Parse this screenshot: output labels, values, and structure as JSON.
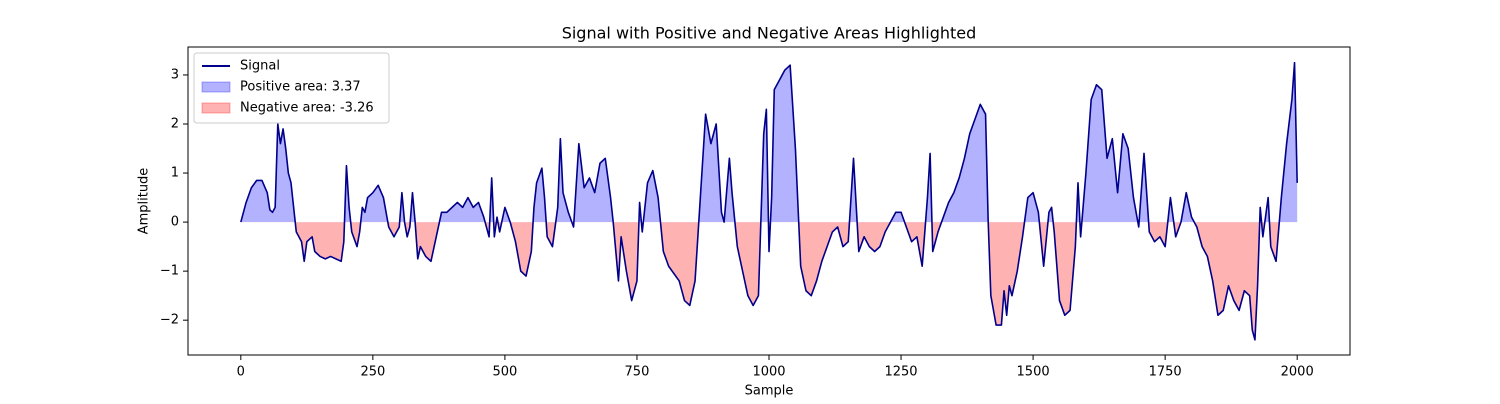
{
  "chart_data": {
    "type": "line",
    "title": "Signal with Positive and Negative Areas Highlighted",
    "x_label": "Sample",
    "y_label": "Amplitude",
    "x": [
      0,
      10,
      20,
      30,
      40,
      50,
      55,
      60,
      65,
      70,
      75,
      80,
      85,
      90,
      95,
      100,
      105,
      115,
      120,
      125,
      135,
      140,
      150,
      160,
      170,
      180,
      190,
      195,
      200,
      205,
      210,
      220,
      225,
      230,
      235,
      240,
      250,
      260,
      270,
      280,
      290,
      300,
      305,
      310,
      315,
      320,
      325,
      330,
      335,
      340,
      350,
      360,
      370,
      380,
      390,
      400,
      410,
      420,
      430,
      440,
      450,
      460,
      470,
      475,
      480,
      485,
      490,
      500,
      510,
      520,
      530,
      540,
      550,
      555,
      560,
      570,
      575,
      580,
      590,
      600,
      605,
      610,
      620,
      630,
      640,
      650,
      660,
      670,
      680,
      690,
      700,
      705,
      715,
      720,
      730,
      740,
      750,
      755,
      760,
      770,
      780,
      790,
      800,
      810,
      830,
      840,
      850,
      860,
      870,
      880,
      890,
      900,
      910,
      915,
      925,
      930,
      940,
      950,
      960,
      970,
      980,
      990,
      995,
      1000,
      1005,
      1010,
      1020,
      1030,
      1040,
      1050,
      1060,
      1070,
      1080,
      1090,
      1100,
      1110,
      1120,
      1130,
      1140,
      1150,
      1160,
      1170,
      1180,
      1190,
      1200,
      1210,
      1220,
      1230,
      1240,
      1250,
      1260,
      1270,
      1280,
      1290,
      1300,
      1305,
      1310,
      1320,
      1330,
      1340,
      1350,
      1360,
      1370,
      1380,
      1390,
      1400,
      1410,
      1415,
      1420,
      1430,
      1440,
      1445,
      1450,
      1455,
      1460,
      1470,
      1480,
      1490,
      1500,
      1510,
      1520,
      1530,
      1535,
      1540,
      1550,
      1560,
      1570,
      1580,
      1585,
      1590,
      1600,
      1610,
      1620,
      1630,
      1640,
      1650,
      1660,
      1670,
      1680,
      1690,
      1700,
      1710,
      1720,
      1730,
      1740,
      1750,
      1760,
      1770,
      1780,
      1790,
      1800,
      1810,
      1820,
      1830,
      1840,
      1850,
      1860,
      1870,
      1880,
      1890,
      1900,
      1910,
      1915,
      1920,
      1925,
      1930,
      1935,
      1945,
      1950,
      1960,
      1970,
      1980,
      1990,
      1995,
      2000
    ],
    "series": [
      {
        "name": "Signal",
        "color": "#00008b",
        "values": [
          0,
          0.4,
          0.7,
          0.85,
          0.85,
          0.6,
          0.25,
          0.2,
          0.3,
          2.0,
          1.6,
          1.9,
          1.5,
          1.0,
          0.8,
          0.3,
          -0.2,
          -0.4,
          -0.8,
          -0.4,
          -0.3,
          -0.6,
          -0.7,
          -0.75,
          -0.7,
          -0.75,
          -0.8,
          -0.4,
          1.15,
          0.3,
          -0.2,
          -0.5,
          -0.2,
          0.3,
          0.2,
          0.5,
          0.6,
          0.75,
          0.5,
          -0.1,
          -0.3,
          -0.1,
          0.6,
          0.0,
          -0.3,
          -0.1,
          0.6,
          0.0,
          -0.75,
          -0.5,
          -0.7,
          -0.8,
          -0.3,
          0.2,
          0.2,
          0.3,
          0.4,
          0.3,
          0.5,
          0.3,
          0.4,
          0.1,
          -0.3,
          0.9,
          -0.3,
          0.1,
          -0.2,
          0.3,
          0.0,
          -0.4,
          -1.0,
          -1.1,
          -0.6,
          0.3,
          0.8,
          1.1,
          0.5,
          -0.3,
          -0.5,
          0.3,
          1.7,
          0.6,
          0.2,
          -0.1,
          1.6,
          0.7,
          0.9,
          0.6,
          1.2,
          1.3,
          0.5,
          0.0,
          -1.2,
          -0.3,
          -1.0,
          -1.6,
          -1.2,
          0.4,
          -0.2,
          0.8,
          1.05,
          0.5,
          -0.6,
          -0.9,
          -1.2,
          -1.6,
          -1.7,
          -1.2,
          0.5,
          2.2,
          1.6,
          2.0,
          0.2,
          0.0,
          1.3,
          0.6,
          -0.5,
          -1.0,
          -1.5,
          -1.7,
          -1.5,
          1.8,
          2.3,
          -0.6,
          0.5,
          2.7,
          2.9,
          3.1,
          3.2,
          1.5,
          -0.9,
          -1.4,
          -1.5,
          -1.2,
          -0.8,
          -0.5,
          -0.2,
          -0.1,
          -0.5,
          -0.4,
          1.3,
          -0.6,
          -0.3,
          -0.5,
          -0.6,
          -0.5,
          -0.2,
          0.0,
          0.2,
          0.2,
          -0.1,
          -0.4,
          -0.3,
          -0.9,
          0.5,
          1.4,
          -0.6,
          -0.2,
          0.1,
          0.4,
          0.6,
          0.9,
          1.3,
          1.8,
          2.1,
          2.4,
          2.2,
          0.0,
          -1.5,
          -2.1,
          -2.1,
          -1.4,
          -1.9,
          -1.3,
          -1.5,
          -1.0,
          -0.3,
          0.5,
          0.6,
          0.2,
          -0.9,
          0.2,
          0.3,
          -0.2,
          -1.6,
          -1.9,
          -1.8,
          -0.5,
          0.8,
          -0.3,
          1.0,
          2.5,
          2.8,
          2.7,
          1.3,
          1.7,
          0.6,
          1.8,
          1.5,
          0.5,
          -0.1,
          1.4,
          -0.2,
          -0.4,
          -0.3,
          -0.5,
          0.5,
          -0.3,
          0.0,
          0.6,
          0.1,
          -0.1,
          -0.5,
          -0.7,
          -1.2,
          -1.9,
          -1.8,
          -1.3,
          -1.6,
          -1.8,
          -1.4,
          -1.5,
          -2.2,
          -2.4,
          -1.3,
          0.3,
          -0.3,
          0.5,
          -0.5,
          -0.8,
          0.5,
          1.6,
          2.5,
          3.25,
          0.8
        ]
      }
    ],
    "areas": [
      {
        "name": "Positive area: 3.37",
        "color": "#0000ff",
        "opacity": 0.3,
        "where": "above"
      },
      {
        "name": "Negative area: -3.26",
        "color": "#ff0000",
        "opacity": 0.3,
        "where": "below"
      }
    ],
    "xlim": [
      -100,
      2100
    ],
    "xticks": [
      0,
      250,
      500,
      750,
      1000,
      1250,
      1500,
      1750,
      2000
    ],
    "ylim": [
      -2.71,
      3.57
    ],
    "yticks": [
      {
        "value": -2,
        "label": "−2"
      },
      {
        "value": -1,
        "label": "−1"
      },
      0,
      1,
      2,
      3
    ],
    "legend": "upper left"
  }
}
